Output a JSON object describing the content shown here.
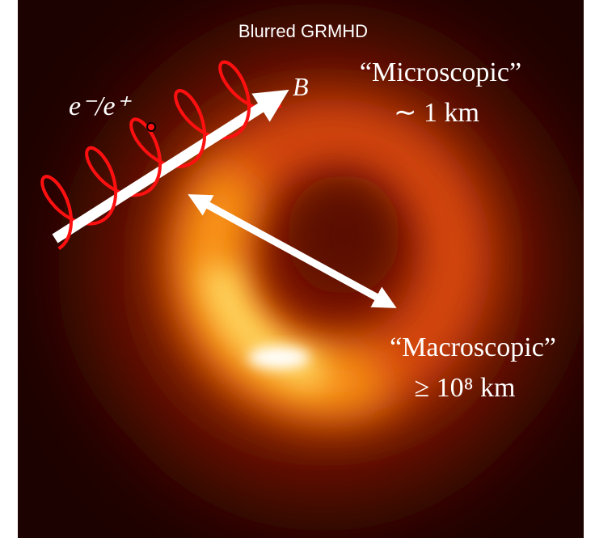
{
  "title": "Blurred GRMHD",
  "labels": {
    "particle": "e⁻/e⁺",
    "field": "B",
    "micro": {
      "name": "“Microscopic”",
      "scale": "∼ 1 km"
    },
    "macro": {
      "name": "“Macroscopic”",
      "scale": "≥ 10⁸ km"
    }
  }
}
